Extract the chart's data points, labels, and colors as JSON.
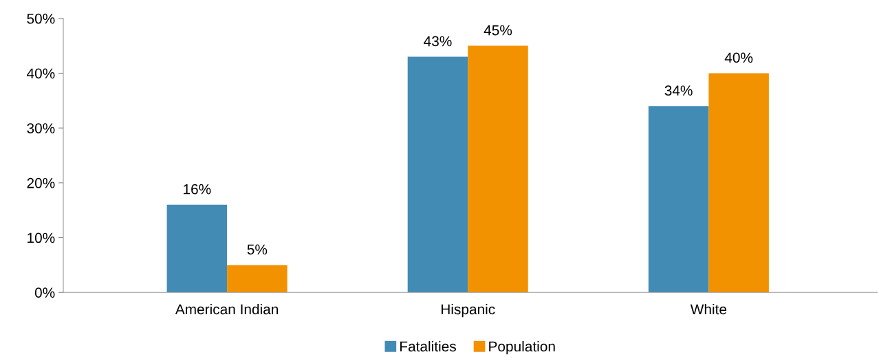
{
  "chart_data": {
    "type": "bar",
    "categories": [
      "American Indian",
      "Hispanic",
      "White"
    ],
    "series": [
      {
        "name": "Fatalities",
        "color": "#428bb5",
        "values": [
          16,
          43,
          34
        ],
        "value_labels": [
          "16%",
          "43%",
          "34%"
        ]
      },
      {
        "name": "Population",
        "color": "#f39200",
        "values": [
          5,
          45,
          40
        ],
        "value_labels": [
          "5%",
          "45%",
          "40%"
        ]
      }
    ],
    "ylim": [
      0,
      50
    ],
    "yticks": [
      {
        "value": 0,
        "label": "0%"
      },
      {
        "value": 10,
        "label": "10%"
      },
      {
        "value": 20,
        "label": "20%"
      },
      {
        "value": 30,
        "label": "30%"
      },
      {
        "value": 40,
        "label": "40%"
      },
      {
        "value": 50,
        "label": "50%"
      }
    ],
    "grid": false,
    "legend": "bottom"
  }
}
